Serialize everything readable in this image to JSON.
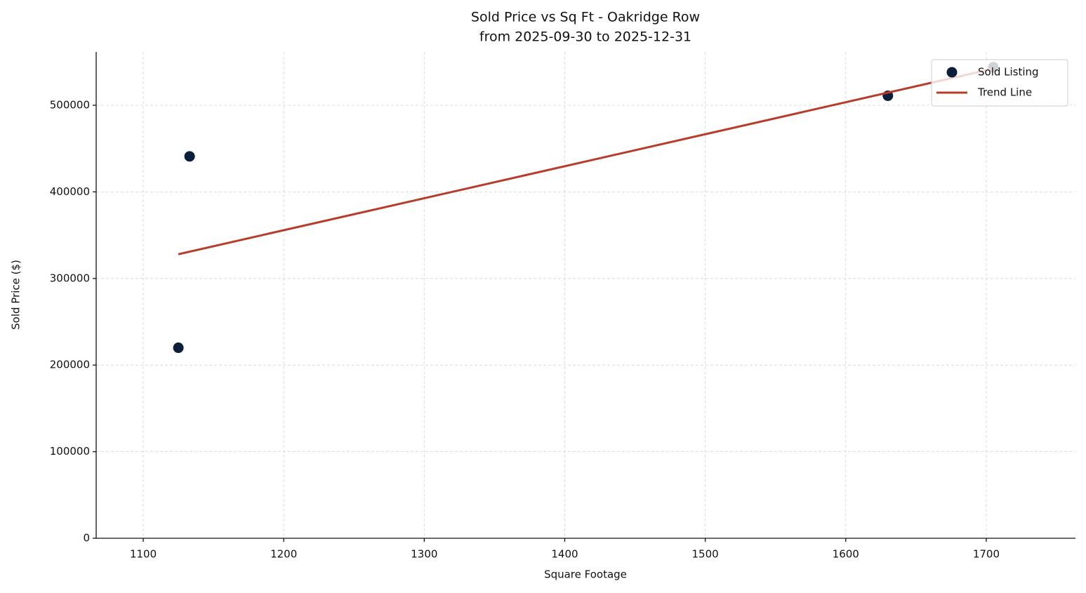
{
  "chart_data": {
    "type": "scatter",
    "title": "Sold Price vs Sq Ft - Oakridge Row",
    "subtitle": "from 2025-09-30 to 2025-12-31",
    "x_label": "Square Footage",
    "y_label": "Sold Price ($)",
    "series": [
      {
        "name": "Sold Listing",
        "type": "scatter",
        "color": "#0b1f3a",
        "x": [
          1125,
          1133,
          1630,
          1705
        ],
        "values": [
          220000,
          441000,
          511000,
          544000
        ]
      },
      {
        "name": "Trend Line",
        "type": "line",
        "color": "#b83c2b",
        "x": [
          1125,
          1705
        ],
        "values": [
          328000,
          542300
        ]
      }
    ],
    "xlim": [
      1066.5,
      1763.5
    ],
    "xticks": [
      1100,
      1200,
      1300,
      1400,
      1500,
      1600,
      1700
    ],
    "ylim": [
      0,
      561600
    ],
    "yticks": [
      0,
      100000,
      200000,
      300000,
      400000,
      500000
    ],
    "grid": true,
    "legend": "upper right"
  }
}
